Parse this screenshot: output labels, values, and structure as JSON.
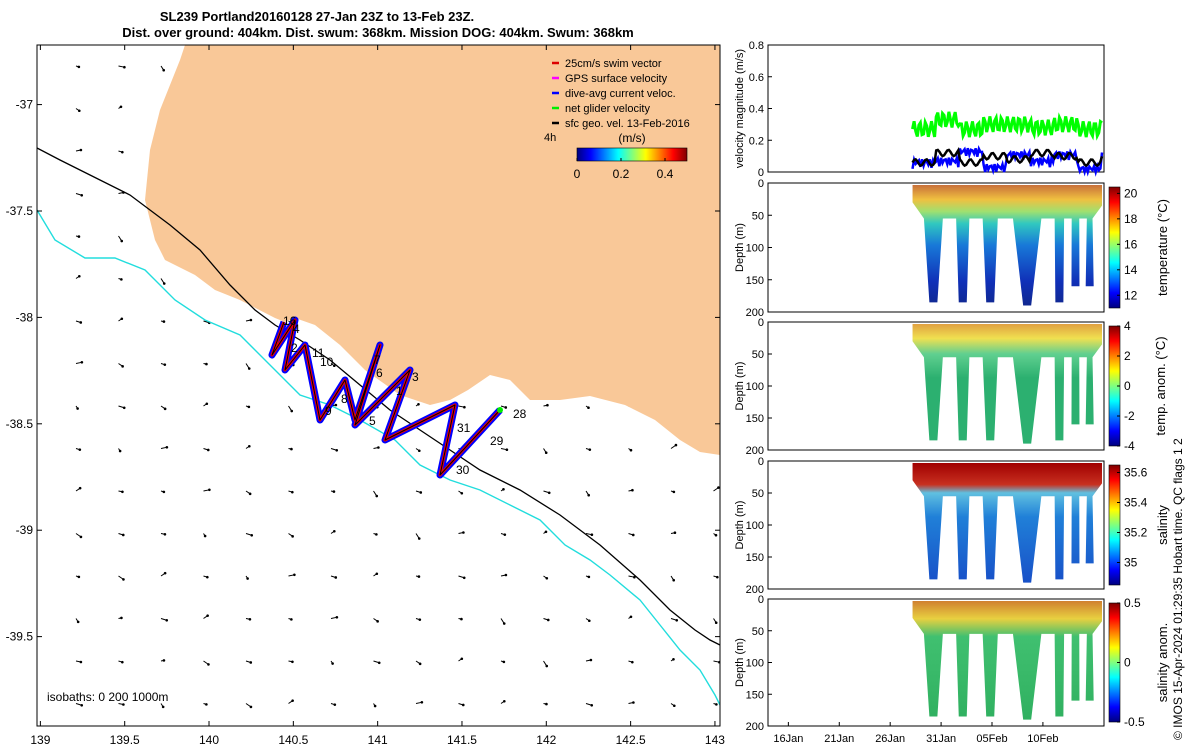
{
  "title": {
    "line1": "SL239 Portland20160128 27-Jan 23Z to 13-Feb 23Z.",
    "line2": "Dist. over ground: 404km. Dist. swum: 368km. Mission DOG: 404km. Swum: 368km"
  },
  "map": {
    "x_ticks": [
      "139",
      "139.5",
      "140",
      "140.5",
      "141",
      "141.5",
      "142",
      "142.5",
      "143"
    ],
    "y_ticks": [
      "-37",
      "-37.5",
      "-38",
      "-38.5",
      "-39",
      "-39.5"
    ],
    "x_range": [
      138.98,
      143.03
    ],
    "y_range": [
      -39.92,
      -36.72
    ],
    "legend": [
      {
        "label": "25cm/s swim vector",
        "color": "#dd0000"
      },
      {
        "label": "GPS surface velocity",
        "color": "#ff00ff"
      },
      {
        "label": "dive-avg current veloc.",
        "color": "#0000ff"
      },
      {
        "label": "net glider velocity",
        "color": "#00ee00"
      },
      {
        "label": "sfc geo. vel. 13-Feb-2016",
        "color": "#000000"
      }
    ],
    "colorbar": {
      "unit": "(m/s)",
      "time_label": "4h",
      "ticks": [
        "0",
        "0.2",
        "0.4"
      ],
      "range": [
        0,
        0.5
      ]
    },
    "isobaths_label": "isobaths: 0  200  1000m",
    "land_color": "#f9c898",
    "isobath_200_color": "#000000",
    "isobath_1000_color": "#22dddd",
    "waypoint_labels": [
      "16",
      "4",
      "2",
      "11",
      "10",
      "7",
      "6",
      "3",
      "9",
      "8",
      "1",
      "5",
      "31",
      "28",
      "29",
      "30"
    ]
  },
  "chart_data": [
    {
      "type": "line",
      "title": "",
      "ylabel": "velocity magnitude (m/s)",
      "ylim": [
        0,
        0.8
      ],
      "y_ticks": [
        "0",
        "0.2",
        "0.4",
        "0.6",
        "0.8"
      ],
      "x_date_range": [
        "2016-01-14",
        "2016-02-16"
      ],
      "x": [
        "2016-01-28",
        "2016-01-30",
        "2016-02-01",
        "2016-02-03",
        "2016-02-05",
        "2016-02-07",
        "2016-02-09",
        "2016-02-11",
        "2016-02-13"
      ],
      "series": [
        {
          "color": "#00ff00",
          "values": [
            0.27,
            0.33,
            0.27,
            0.3,
            0.3,
            0.28,
            0.3,
            0.27,
            0.3
          ]
        },
        {
          "color": "#0000ff",
          "values": [
            0.05,
            0.06,
            0.12,
            0.02,
            0.1,
            0.06,
            0.1,
            0.01,
            0.1
          ]
        },
        {
          "color": "#000000",
          "values": [
            0.06,
            0.12,
            0.06,
            0.1,
            0.08,
            0.12,
            0.1,
            0.06,
            0.08
          ]
        }
      ]
    },
    {
      "type": "heatmap",
      "ylabel": "Depth (m)",
      "colorbar_label": "temperature (°C)",
      "ylim": [
        200,
        0
      ],
      "y_ticks": [
        "0",
        "50",
        "100",
        "150",
        "200"
      ],
      "color_ticks": [
        "12",
        "14",
        "16",
        "18",
        "20"
      ],
      "color_range": [
        11,
        20.5
      ],
      "surface_value": 19.5,
      "deep_value": 11.5
    },
    {
      "type": "heatmap",
      "ylabel": "Depth (m)",
      "colorbar_label": "temp. anom. (°C)",
      "ylim": [
        200,
        0
      ],
      "y_ticks": [
        "0",
        "50",
        "100",
        "150",
        "200"
      ],
      "color_ticks": [
        "-4",
        "-2",
        "0",
        "2",
        "4"
      ],
      "color_range": [
        -4,
        4
      ],
      "surface_value": 3,
      "deep_value": 0
    },
    {
      "type": "heatmap",
      "ylabel": "Depth (m)",
      "colorbar_label": "salinity",
      "ylim": [
        200,
        0
      ],
      "y_ticks": [
        "0",
        "50",
        "100",
        "150",
        "200"
      ],
      "color_ticks": [
        "35",
        "35.2",
        "35.4",
        "35.6"
      ],
      "color_range": [
        34.85,
        35.65
      ],
      "surface_value": 35.6,
      "deep_value": 35.1
    },
    {
      "type": "heatmap",
      "ylabel": "Depth (m)",
      "colorbar_label": "salinity anom.",
      "ylim": [
        200,
        0
      ],
      "y_ticks": [
        "0",
        "50",
        "100",
        "150",
        "200"
      ],
      "color_ticks": [
        "-0.5",
        "0",
        "0.5"
      ],
      "color_range": [
        -0.5,
        0.5
      ],
      "surface_value": 0.4,
      "deep_value": 0,
      "x_ticks": [
        "16Jan",
        "21Jan",
        "26Jan",
        "31Jan",
        "05Feb",
        "10Feb"
      ]
    }
  ],
  "side_note": "© IMOS 15-Apr-2024 01:29:35 Hobart time. QC flags 1  2"
}
